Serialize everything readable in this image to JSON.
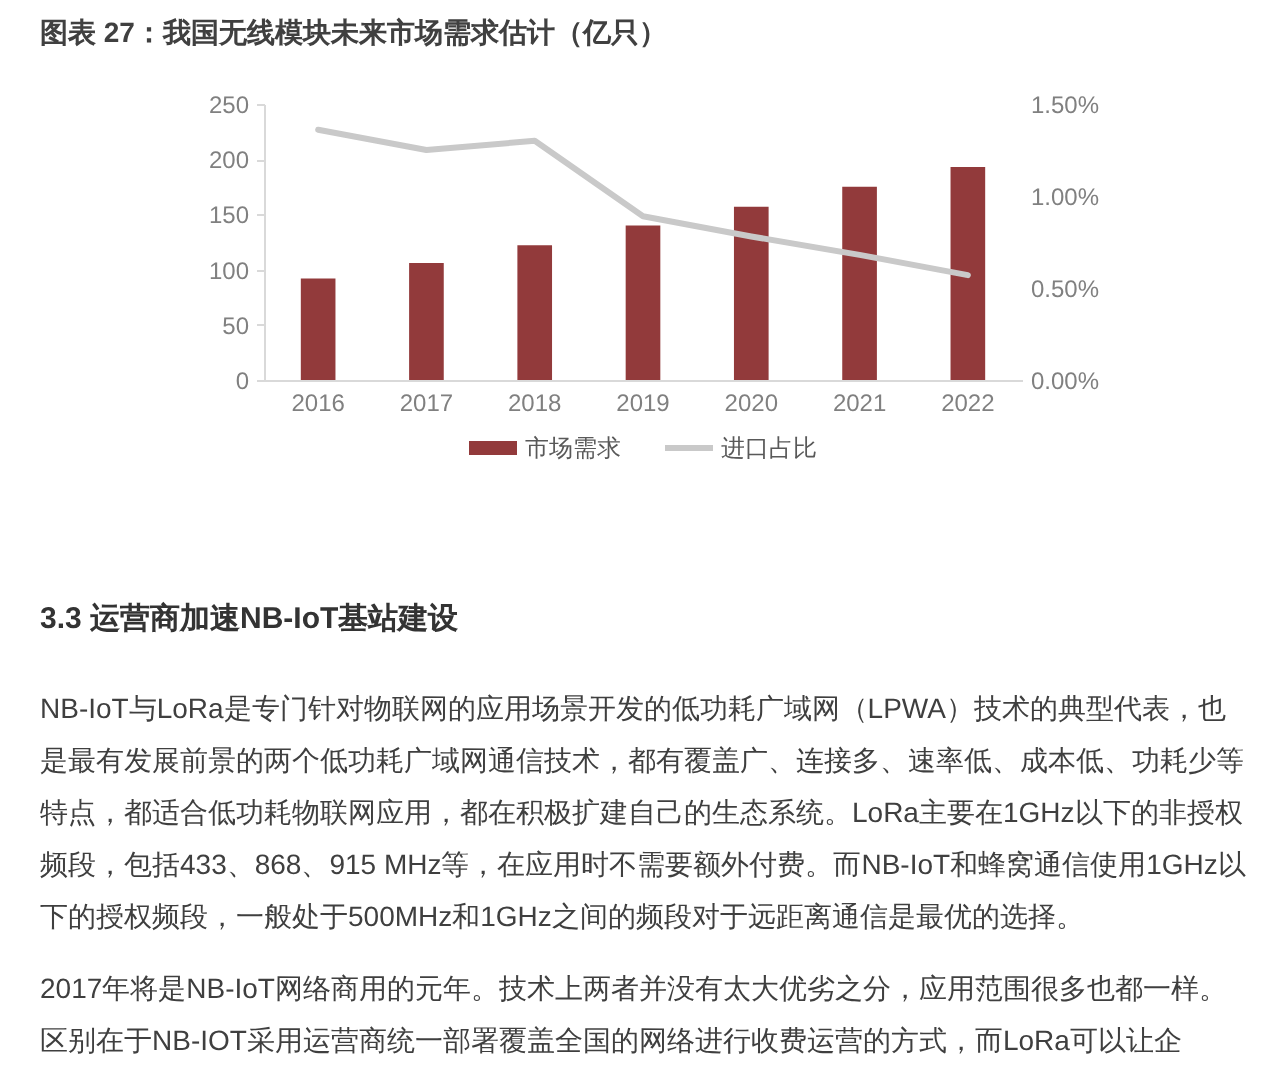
{
  "chart_data": {
    "type": "bar",
    "title": "图表 27：我国无线模块未来市场需求估计（亿只）",
    "categories": [
      "2016",
      "2017",
      "2018",
      "2019",
      "2020",
      "2021",
      "2022"
    ],
    "series": [
      {
        "name": "市场需求",
        "color": "#923a3b",
        "values": [
          92,
          106,
          122,
          140,
          157,
          175,
          193
        ]
      },
      {
        "name": "进口占比",
        "type": "line",
        "axis": "y2",
        "color": "#c9c9c9",
        "values": [
          1.36,
          1.25,
          1.3,
          0.89,
          0.78,
          0.68,
          0.57
        ]
      }
    ],
    "ylim": [
      0,
      250
    ],
    "yticks": [
      0,
      50,
      100,
      150,
      200,
      250
    ],
    "y2lim": [
      0,
      1.5
    ],
    "y2ticks": [
      {
        "value": 0,
        "label": "0.00%"
      },
      {
        "value": 0.5,
        "label": "0.50%"
      },
      {
        "value": 1.0,
        "label": "1.00%"
      },
      {
        "value": 1.5,
        "label": "1.50%"
      }
    ],
    "grid": false,
    "legend": "bottom",
    "annotations": [
      "3.3 运营商加速NB-IoT基站建设",
      "NB-IoT与LoRa是专门针对物联网的应用场景开发的低功耗广域网（LPWA）技术的典型代表，也是最有发展前景的两个低功耗广域网通信技术，都有覆盖广、连接多、速率低、成本低、功耗少等特点，都适合低功耗物联网应用，都在积极扩建自己的生态系统。LoRa主要在1GHz以下的非授权频段，包括433、868、915 MHz等，在应用时不需要额外付费。而NB-IoT和蜂窝通信使用1GHz以下的授权频段，一般处于500MHz和1GHz之间的频段对于远距离通信是最优的选择。",
      "2017年将是NB-IoT网络商用的元年。技术上两者并没有太大优劣之分，应用范围很多也都一样。区别在于NB-IOT采用运营商统一部署覆盖全国的网络进行收费运营的方式，而LoRa可以让企"
    ]
  }
}
